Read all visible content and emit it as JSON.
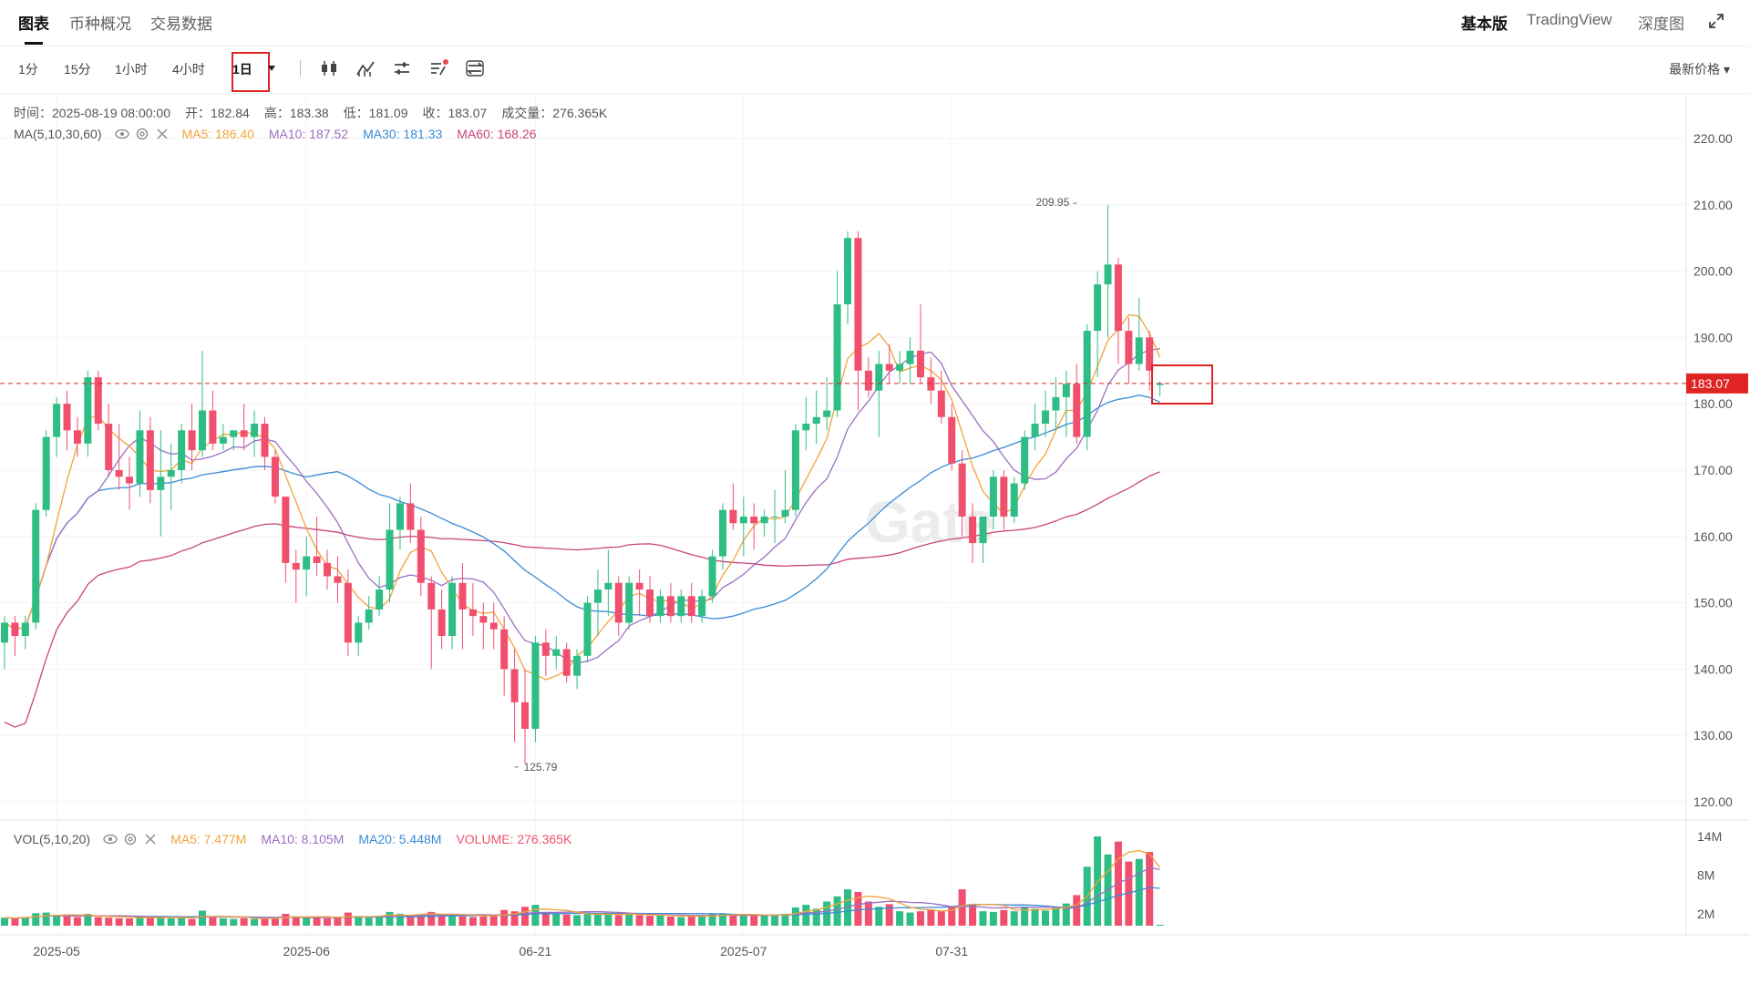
{
  "tabs": {
    "chart": "图表",
    "overview": "币种概况",
    "trade_data": "交易数据"
  },
  "right_tabs": {
    "basic": "基本版",
    "tradingview": "TradingView",
    "depth": "深度图"
  },
  "intervals": [
    "1分",
    "15分",
    "1小时",
    "4小时",
    "1日"
  ],
  "selected_interval": "1日",
  "price_select": "最新价格 ▾",
  "info": {
    "time": "时间：2025-08-19 08:00:00",
    "open": "开：182.84",
    "high": "高：183.38",
    "low": "低：181.09",
    "close": "收：183.07",
    "volume": "成交量：276.365K"
  },
  "ma_legend": {
    "label": "MA(5,10,30,60)",
    "ma5": "MA5: 186.40",
    "ma10": "MA10: 187.52",
    "ma30": "MA30: 181.33",
    "ma60": "MA60: 168.26"
  },
  "vol_legend": {
    "label": "VOL(5,10,20)",
    "ma5": "MA5: 7.477M",
    "ma10": "MA10: 8.105M",
    "ma20": "MA20: 5.448M",
    "volume": "VOLUME: 276.365K"
  },
  "colors": {
    "up": "#2ebd85",
    "down": "#f0506e",
    "ma5": "#f2a33a",
    "ma10": "#9b6fc4",
    "ma30": "#3a8ad8",
    "ma60": "#c8447a",
    "last_price": "#e02424"
  },
  "watermark": "Gate",
  "chart_data": {
    "type": "candlestick",
    "y_ticks": [
      "220.00",
      "210.00",
      "200.00",
      "190.00",
      "180.00",
      "170.00",
      "160.00",
      "150.00",
      "140.00",
      "130.00",
      "120.00"
    ],
    "ylim": [
      118,
      223
    ],
    "vol_ticks": [
      "14M",
      "8M",
      "2M"
    ],
    "x_labels": [
      {
        "label": "2025-05",
        "index": 5
      },
      {
        "label": "2025-06",
        "index": 29
      },
      {
        "label": "06-21",
        "index": 51
      },
      {
        "label": "2025-07",
        "index": 71
      },
      {
        "label": "07-31",
        "index": 91
      }
    ],
    "last_price": 183.07,
    "last_price_label": "183.07",
    "high_mark": {
      "label": "209.95",
      "value": 209.95,
      "index": 103
    },
    "low_mark": {
      "label": "125.79",
      "value": 125.79,
      "index": 49
    },
    "candles": [
      {
        "o": 144,
        "h": 148,
        "l": 140,
        "c": 147
      },
      {
        "o": 147,
        "h": 148,
        "l": 142,
        "c": 145
      },
      {
        "o": 145,
        "h": 148,
        "l": 143,
        "c": 147
      },
      {
        "o": 147,
        "h": 165,
        "l": 146,
        "c": 164
      },
      {
        "o": 164,
        "h": 176,
        "l": 163,
        "c": 175
      },
      {
        "o": 175,
        "h": 181,
        "l": 172,
        "c": 180
      },
      {
        "o": 180,
        "h": 182,
        "l": 173,
        "c": 176
      },
      {
        "o": 176,
        "h": 178,
        "l": 172,
        "c": 174
      },
      {
        "o": 174,
        "h": 185,
        "l": 172,
        "c": 184
      },
      {
        "o": 184,
        "h": 185,
        "l": 176,
        "c": 177
      },
      {
        "o": 177,
        "h": 180,
        "l": 169,
        "c": 170
      },
      {
        "o": 170,
        "h": 177,
        "l": 167,
        "c": 169
      },
      {
        "o": 169,
        "h": 172,
        "l": 164,
        "c": 168
      },
      {
        "o": 168,
        "h": 179,
        "l": 166,
        "c": 176
      },
      {
        "o": 176,
        "h": 178,
        "l": 165,
        "c": 167
      },
      {
        "o": 167,
        "h": 176,
        "l": 160,
        "c": 169
      },
      {
        "o": 169,
        "h": 174,
        "l": 164,
        "c": 170
      },
      {
        "o": 170,
        "h": 177,
        "l": 168,
        "c": 176
      },
      {
        "o": 176,
        "h": 180,
        "l": 170,
        "c": 173
      },
      {
        "o": 173,
        "h": 188,
        "l": 172,
        "c": 179
      },
      {
        "o": 179,
        "h": 182,
        "l": 173,
        "c": 174
      },
      {
        "o": 174,
        "h": 177,
        "l": 173,
        "c": 175
      },
      {
        "o": 175,
        "h": 176,
        "l": 173,
        "c": 176
      },
      {
        "o": 176,
        "h": 180,
        "l": 173,
        "c": 175
      },
      {
        "o": 175,
        "h": 179,
        "l": 172,
        "c": 177
      },
      {
        "o": 177,
        "h": 178,
        "l": 170,
        "c": 172
      },
      {
        "o": 172,
        "h": 173,
        "l": 165,
        "c": 166
      },
      {
        "o": 166,
        "h": 166,
        "l": 153,
        "c": 156
      },
      {
        "o": 156,
        "h": 158,
        "l": 150,
        "c": 155
      },
      {
        "o": 155,
        "h": 160,
        "l": 151,
        "c": 157
      },
      {
        "o": 157,
        "h": 163,
        "l": 154,
        "c": 156
      },
      {
        "o": 156,
        "h": 158,
        "l": 152,
        "c": 154
      },
      {
        "o": 154,
        "h": 157,
        "l": 150,
        "c": 153
      },
      {
        "o": 153,
        "h": 155,
        "l": 142,
        "c": 144
      },
      {
        "o": 144,
        "h": 148,
        "l": 142,
        "c": 147
      },
      {
        "o": 147,
        "h": 151,
        "l": 146,
        "c": 149
      },
      {
        "o": 149,
        "h": 154,
        "l": 148,
        "c": 152
      },
      {
        "o": 152,
        "h": 165,
        "l": 150,
        "c": 161
      },
      {
        "o": 161,
        "h": 166,
        "l": 158,
        "c": 165
      },
      {
        "o": 165,
        "h": 168,
        "l": 159,
        "c": 161
      },
      {
        "o": 161,
        "h": 163,
        "l": 151,
        "c": 153
      },
      {
        "o": 153,
        "h": 154,
        "l": 140,
        "c": 149
      },
      {
        "o": 149,
        "h": 152,
        "l": 143,
        "c": 145
      },
      {
        "o": 145,
        "h": 154,
        "l": 143,
        "c": 153
      },
      {
        "o": 153,
        "h": 156,
        "l": 143,
        "c": 149
      },
      {
        "o": 149,
        "h": 153,
        "l": 145,
        "c": 148
      },
      {
        "o": 148,
        "h": 150,
        "l": 143,
        "c": 147
      },
      {
        "o": 147,
        "h": 150,
        "l": 143,
        "c": 146
      },
      {
        "o": 146,
        "h": 148,
        "l": 136,
        "c": 140
      },
      {
        "o": 140,
        "h": 143,
        "l": 129,
        "c": 135
      },
      {
        "o": 135,
        "h": 140,
        "l": 125.79,
        "c": 131
      },
      {
        "o": 131,
        "h": 145,
        "l": 129,
        "c": 144
      },
      {
        "o": 144,
        "h": 146,
        "l": 139,
        "c": 142
      },
      {
        "o": 142,
        "h": 145,
        "l": 140,
        "c": 143
      },
      {
        "o": 143,
        "h": 144,
        "l": 138,
        "c": 139
      },
      {
        "o": 139,
        "h": 143,
        "l": 137,
        "c": 142
      },
      {
        "o": 142,
        "h": 151,
        "l": 141,
        "c": 150
      },
      {
        "o": 150,
        "h": 155,
        "l": 145,
        "c": 152
      },
      {
        "o": 152,
        "h": 158,
        "l": 148,
        "c": 153
      },
      {
        "o": 153,
        "h": 154,
        "l": 145,
        "c": 147
      },
      {
        "o": 147,
        "h": 154,
        "l": 146,
        "c": 153
      },
      {
        "o": 153,
        "h": 155,
        "l": 148,
        "c": 152
      },
      {
        "o": 152,
        "h": 154,
        "l": 147,
        "c": 148
      },
      {
        "o": 148,
        "h": 152,
        "l": 147,
        "c": 151
      },
      {
        "o": 151,
        "h": 153,
        "l": 147,
        "c": 148
      },
      {
        "o": 148,
        "h": 152,
        "l": 147,
        "c": 151
      },
      {
        "o": 151,
        "h": 153,
        "l": 147,
        "c": 148
      },
      {
        "o": 148,
        "h": 152,
        "l": 147,
        "c": 151
      },
      {
        "o": 151,
        "h": 158,
        "l": 150,
        "c": 157
      },
      {
        "o": 157,
        "h": 165,
        "l": 155,
        "c": 164
      },
      {
        "o": 164,
        "h": 168,
        "l": 161,
        "c": 162
      },
      {
        "o": 162,
        "h": 166,
        "l": 157,
        "c": 163
      },
      {
        "o": 163,
        "h": 165,
        "l": 158,
        "c": 162
      },
      {
        "o": 162,
        "h": 164,
        "l": 160,
        "c": 163
      },
      {
        "o": 163,
        "h": 167,
        "l": 159,
        "c": 163
      },
      {
        "o": 163,
        "h": 170,
        "l": 162,
        "c": 164
      },
      {
        "o": 164,
        "h": 177,
        "l": 163,
        "c": 176
      },
      {
        "o": 176,
        "h": 181,
        "l": 173,
        "c": 177
      },
      {
        "o": 177,
        "h": 182,
        "l": 174,
        "c": 178
      },
      {
        "o": 178,
        "h": 184,
        "l": 176,
        "c": 179
      },
      {
        "o": 179,
        "h": 200,
        "l": 178,
        "c": 195
      },
      {
        "o": 195,
        "h": 206,
        "l": 192,
        "c": 205
      },
      {
        "o": 205,
        "h": 206,
        "l": 179,
        "c": 185
      },
      {
        "o": 185,
        "h": 187,
        "l": 181,
        "c": 182
      },
      {
        "o": 182,
        "h": 188,
        "l": 175,
        "c": 186
      },
      {
        "o": 186,
        "h": 189,
        "l": 183,
        "c": 185
      },
      {
        "o": 185,
        "h": 188,
        "l": 183,
        "c": 186
      },
      {
        "o": 186,
        "h": 190,
        "l": 183,
        "c": 188
      },
      {
        "o": 188,
        "h": 195,
        "l": 183,
        "c": 184
      },
      {
        "o": 184,
        "h": 187,
        "l": 180,
        "c": 182
      },
      {
        "o": 182,
        "h": 185,
        "l": 177,
        "c": 178
      },
      {
        "o": 178,
        "h": 180,
        "l": 170,
        "c": 171
      },
      {
        "o": 171,
        "h": 173,
        "l": 160,
        "c": 163
      },
      {
        "o": 163,
        "h": 165,
        "l": 156,
        "c": 159
      },
      {
        "o": 159,
        "h": 162,
        "l": 156,
        "c": 163
      },
      {
        "o": 163,
        "h": 170,
        "l": 161,
        "c": 169
      },
      {
        "o": 169,
        "h": 170,
        "l": 161,
        "c": 163
      },
      {
        "o": 163,
        "h": 169,
        "l": 162,
        "c": 168
      },
      {
        "o": 168,
        "h": 176,
        "l": 167,
        "c": 175
      },
      {
        "o": 175,
        "h": 180,
        "l": 173,
        "c": 177
      },
      {
        "o": 177,
        "h": 182,
        "l": 175,
        "c": 179
      },
      {
        "o": 179,
        "h": 184,
        "l": 176,
        "c": 181
      },
      {
        "o": 181,
        "h": 185,
        "l": 175,
        "c": 183
      },
      {
        "o": 183,
        "h": 186,
        "l": 174,
        "c": 175
      },
      {
        "o": 175,
        "h": 192,
        "l": 173,
        "c": 191
      },
      {
        "o": 191,
        "h": 200,
        "l": 184,
        "c": 198
      },
      {
        "o": 198,
        "h": 209.95,
        "l": 190,
        "c": 201
      },
      {
        "o": 201,
        "h": 202,
        "l": 186,
        "c": 191
      },
      {
        "o": 191,
        "h": 193,
        "l": 183,
        "c": 186
      },
      {
        "o": 186,
        "h": 196,
        "l": 185,
        "c": 190
      },
      {
        "o": 190,
        "h": 191,
        "l": 182,
        "c": 185
      },
      {
        "o": 182.84,
        "h": 183.38,
        "l": 181.09,
        "c": 183.07
      }
    ],
    "volumes": [
      1.4,
      1.3,
      1.5,
      2.1,
      2.2,
      1.8,
      1.6,
      1.5,
      2.0,
      1.5,
      1.4,
      1.3,
      1.3,
      1.6,
      1.4,
      1.5,
      1.3,
      1.4,
      1.2,
      2.5,
      1.5,
      1.3,
      1.2,
      1.3,
      1.2,
      1.4,
      1.3,
      2.0,
      1.6,
      1.4,
      1.5,
      1.3,
      1.4,
      2.2,
      1.5,
      1.4,
      1.6,
      2.3,
      2.0,
      1.7,
      1.9,
      2.3,
      1.8,
      2.0,
      1.6,
      1.5,
      1.6,
      1.8,
      2.6,
      2.4,
      3.1,
      3.4,
      2.2,
      2.0,
      1.9,
      1.8,
      2.0,
      2.1,
      1.9,
      1.8,
      2.0,
      1.8,
      1.7,
      1.8,
      1.6,
      1.5,
      1.6,
      1.7,
      2.0,
      2.1,
      1.8,
      1.9,
      1.7,
      1.7,
      1.8,
      2.0,
      3.0,
      3.4,
      2.8,
      3.9,
      4.7,
      5.8,
      5.4,
      3.9,
      3.1,
      3.5,
      2.4,
      2.2,
      2.4,
      2.7,
      2.4,
      3.1,
      5.8,
      3.5,
      2.4,
      2.3,
      2.6,
      2.4,
      3.1,
      2.8,
      2.5,
      3.1,
      3.6,
      4.9,
      9.3,
      14.0,
      11.2,
      13.2,
      10.1,
      10.5,
      11.6,
      0.3
    ]
  }
}
